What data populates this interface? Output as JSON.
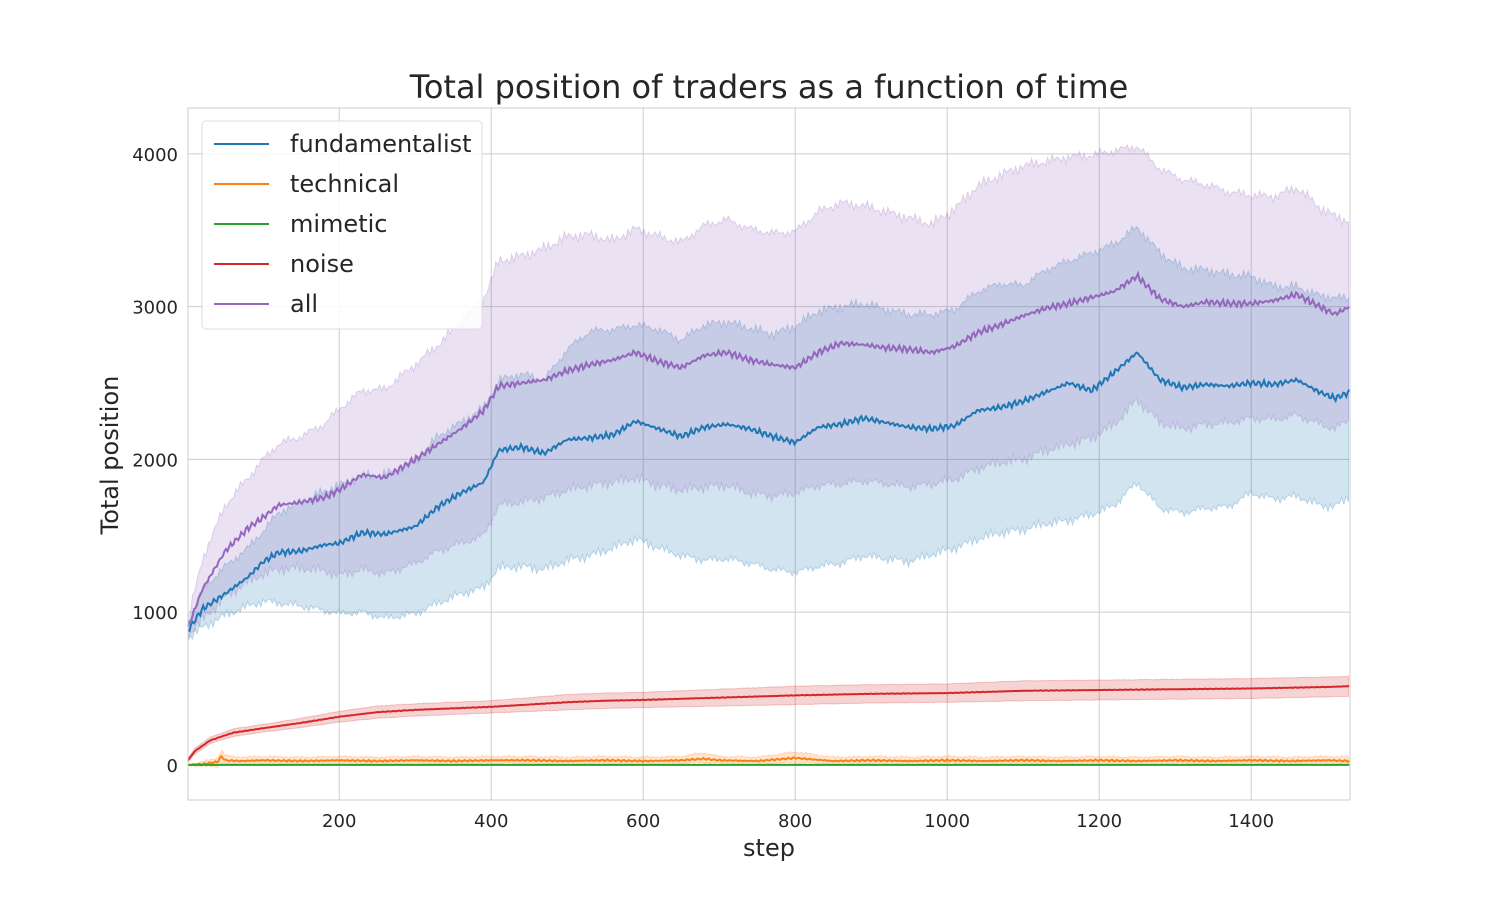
{
  "chart_data": {
    "type": "line",
    "title": "Total position of traders as a function of time",
    "xlabel": "step",
    "ylabel": "Total position",
    "xlim": [
      1,
      1530
    ],
    "ylim": [
      -230,
      4300
    ],
    "xticks": [
      200,
      400,
      600,
      800,
      1000,
      1200,
      1400
    ],
    "yticks": [
      0,
      1000,
      2000,
      3000,
      4000
    ],
    "grid": true,
    "legend_position": "top-left",
    "series": [
      {
        "name": "fundamentalist",
        "color": "#1f77b4",
        "x": [
          1,
          20,
          50,
          80,
          100,
          120,
          150,
          180,
          200,
          230,
          260,
          300,
          330,
          360,
          390,
          410,
          440,
          470,
          500,
          530,
          560,
          590,
          620,
          650,
          680,
          710,
          740,
          770,
          800,
          830,
          860,
          890,
          920,
          950,
          980,
          1010,
          1040,
          1070,
          1100,
          1130,
          1160,
          1190,
          1220,
          1250,
          1280,
          1310,
          1340,
          1370,
          1400,
          1430,
          1460,
          1490,
          1510,
          1530
        ],
        "values": [
          880,
          1020,
          1120,
          1230,
          1330,
          1390,
          1400,
          1440,
          1450,
          1520,
          1510,
          1560,
          1690,
          1780,
          1850,
          2060,
          2080,
          2040,
          2130,
          2140,
          2160,
          2250,
          2200,
          2150,
          2210,
          2230,
          2200,
          2150,
          2110,
          2210,
          2230,
          2270,
          2240,
          2210,
          2200,
          2220,
          2320,
          2340,
          2380,
          2440,
          2500,
          2450,
          2570,
          2700,
          2520,
          2470,
          2490,
          2480,
          2500,
          2490,
          2520,
          2440,
          2400,
          2440
        ],
        "lower": [
          830,
          900,
          980,
          1040,
          1070,
          1060,
          1040,
          1010,
          990,
          1000,
          960,
          990,
          1060,
          1120,
          1160,
          1290,
          1300,
          1280,
          1340,
          1370,
          1420,
          1480,
          1420,
          1370,
          1340,
          1350,
          1320,
          1280,
          1260,
          1300,
          1320,
          1370,
          1350,
          1330,
          1380,
          1420,
          1480,
          1520,
          1540,
          1580,
          1600,
          1640,
          1700,
          1850,
          1680,
          1650,
          1680,
          1690,
          1780,
          1740,
          1760,
          1700,
          1690,
          1760
        ],
        "upper": [
          940,
          1150,
          1300,
          1420,
          1530,
          1650,
          1720,
          1790,
          1830,
          1890,
          1900,
          1990,
          2150,
          2240,
          2340,
          2520,
          2560,
          2520,
          2720,
          2840,
          2850,
          2880,
          2850,
          2780,
          2880,
          2900,
          2860,
          2820,
          2870,
          2970,
          3000,
          3020,
          2980,
          2950,
          2950,
          2980,
          3100,
          3150,
          3140,
          3240,
          3300,
          3350,
          3410,
          3520,
          3350,
          3250,
          3240,
          3210,
          3200,
          3130,
          3130,
          3070,
          3060,
          3050
        ]
      },
      {
        "name": "technical",
        "color": "#ff7f0e",
        "x": [
          1,
          20,
          40,
          45,
          50,
          70,
          100,
          150,
          200,
          250,
          300,
          350,
          400,
          450,
          500,
          550,
          600,
          650,
          680,
          700,
          750,
          800,
          850,
          900,
          950,
          1000,
          1050,
          1100,
          1150,
          1200,
          1250,
          1300,
          1350,
          1400,
          1450,
          1500,
          1530
        ],
        "values": [
          0,
          5,
          20,
          55,
          30,
          25,
          30,
          25,
          30,
          25,
          30,
          25,
          30,
          30,
          25,
          30,
          25,
          30,
          40,
          30,
          25,
          45,
          25,
          30,
          25,
          30,
          25,
          30,
          25,
          30,
          25,
          30,
          25,
          30,
          25,
          30,
          25
        ],
        "lower": [
          0,
          -10,
          -10,
          10,
          5,
          5,
          10,
          5,
          10,
          5,
          10,
          5,
          10,
          10,
          5,
          10,
          5,
          10,
          15,
          10,
          5,
          15,
          5,
          10,
          5,
          10,
          5,
          10,
          5,
          10,
          5,
          10,
          5,
          10,
          5,
          10,
          5
        ],
        "upper": [
          0,
          20,
          45,
          100,
          60,
          50,
          55,
          50,
          55,
          50,
          55,
          50,
          55,
          55,
          50,
          55,
          50,
          55,
          80,
          55,
          50,
          85,
          50,
          55,
          50,
          55,
          50,
          55,
          50,
          55,
          50,
          55,
          50,
          55,
          50,
          55,
          50
        ]
      },
      {
        "name": "mimetic",
        "color": "#2ca02c",
        "x": [
          1,
          1530
        ],
        "values": [
          0,
          0
        ],
        "lower": [
          0,
          0
        ],
        "upper": [
          0,
          0
        ]
      },
      {
        "name": "noise",
        "color": "#d62728",
        "x": [
          1,
          10,
          30,
          60,
          100,
          150,
          200,
          250,
          300,
          350,
          400,
          450,
          500,
          550,
          600,
          700,
          800,
          900,
          1000,
          1100,
          1200,
          1300,
          1400,
          1500,
          1530
        ],
        "values": [
          30,
          90,
          160,
          210,
          240,
          275,
          315,
          345,
          360,
          370,
          380,
          395,
          410,
          420,
          425,
          440,
          455,
          465,
          470,
          485,
          490,
          495,
          500,
          510,
          515
        ],
        "lower": [
          20,
          70,
          140,
          185,
          215,
          245,
          280,
          305,
          320,
          330,
          340,
          350,
          360,
          370,
          375,
          385,
          395,
          405,
          410,
          420,
          425,
          430,
          435,
          445,
          450
        ],
        "upper": [
          40,
          110,
          180,
          235,
          265,
          305,
          350,
          385,
          400,
          410,
          420,
          440,
          460,
          470,
          475,
          495,
          515,
          525,
          530,
          550,
          555,
          560,
          565,
          575,
          580
        ]
      },
      {
        "name": "all",
        "color": "#9467bd",
        "x": [
          1,
          20,
          50,
          80,
          100,
          120,
          150,
          180,
          200,
          230,
          260,
          300,
          330,
          360,
          390,
          410,
          440,
          470,
          500,
          530,
          560,
          590,
          620,
          650,
          680,
          710,
          740,
          770,
          800,
          830,
          860,
          890,
          920,
          950,
          980,
          1010,
          1040,
          1070,
          1100,
          1130,
          1160,
          1190,
          1220,
          1250,
          1280,
          1310,
          1340,
          1370,
          1400,
          1430,
          1460,
          1490,
          1510,
          1530
        ],
        "values": [
          900,
          1150,
          1400,
          1550,
          1620,
          1700,
          1720,
          1750,
          1800,
          1900,
          1880,
          2000,
          2100,
          2200,
          2320,
          2480,
          2500,
          2520,
          2580,
          2620,
          2650,
          2700,
          2640,
          2600,
          2680,
          2700,
          2650,
          2620,
          2600,
          2700,
          2760,
          2750,
          2730,
          2720,
          2700,
          2740,
          2830,
          2880,
          2940,
          2990,
          3020,
          3060,
          3100,
          3200,
          3050,
          3000,
          3030,
          3020,
          3020,
          3040,
          3080,
          3000,
          2950,
          3000
        ],
        "lower": [
          850,
          950,
          1100,
          1200,
          1250,
          1280,
          1290,
          1270,
          1240,
          1280,
          1250,
          1320,
          1400,
          1450,
          1500,
          1700,
          1720,
          1750,
          1800,
          1830,
          1850,
          1880,
          1830,
          1800,
          1820,
          1830,
          1780,
          1760,
          1780,
          1830,
          1840,
          1860,
          1840,
          1820,
          1840,
          1870,
          1940,
          1980,
          2000,
          2060,
          2100,
          2140,
          2230,
          2390,
          2240,
          2200,
          2230,
          2240,
          2270,
          2260,
          2290,
          2230,
          2200,
          2260
        ],
        "upper": [
          950,
          1350,
          1700,
          1880,
          2000,
          2100,
          2150,
          2230,
          2330,
          2450,
          2460,
          2620,
          2750,
          2900,
          3050,
          3300,
          3330,
          3380,
          3460,
          3470,
          3430,
          3510,
          3460,
          3420,
          3530,
          3570,
          3510,
          3480,
          3490,
          3620,
          3680,
          3660,
          3620,
          3580,
          3540,
          3640,
          3790,
          3860,
          3920,
          3950,
          3980,
          3990,
          4020,
          4050,
          3900,
          3830,
          3800,
          3750,
          3730,
          3720,
          3780,
          3650,
          3590,
          3560
        ]
      }
    ]
  }
}
